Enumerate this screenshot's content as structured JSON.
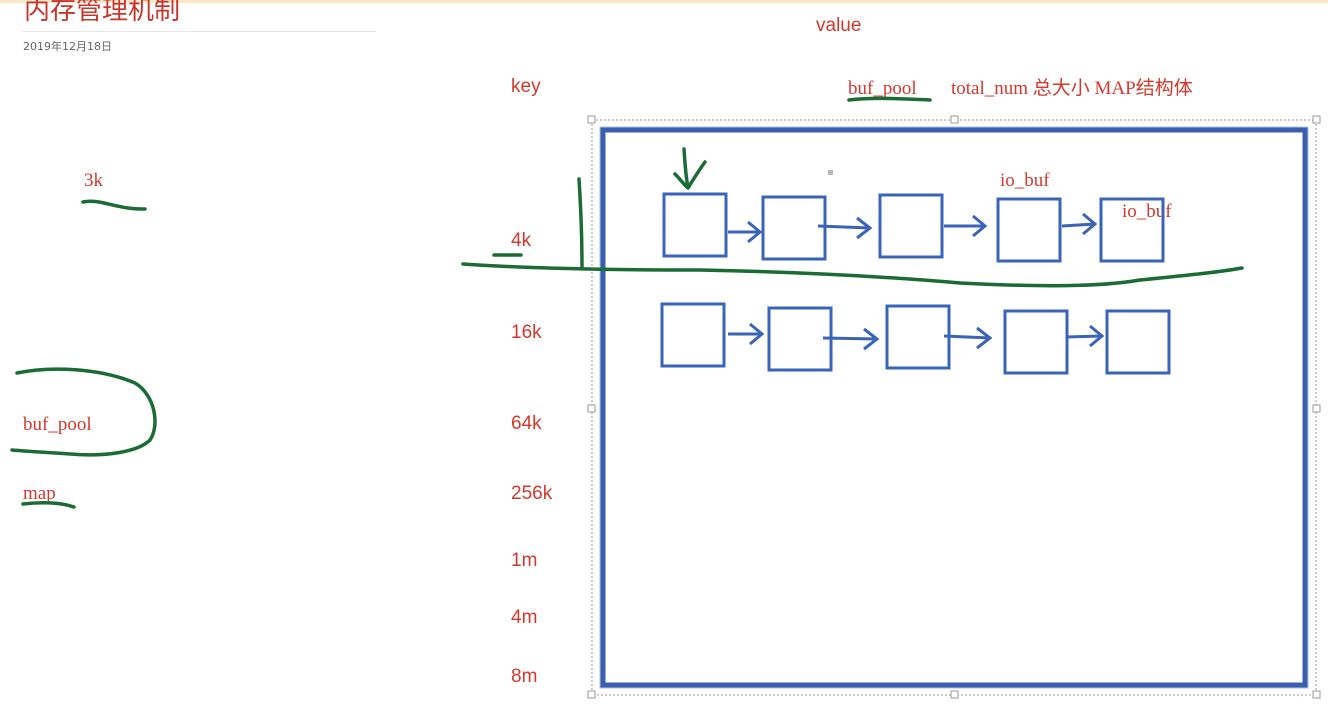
{
  "header": {
    "title": "内存管理机制",
    "date": "2019年12月18日"
  },
  "left_annotations": {
    "size_note": "3k",
    "pool_label": "buf_pool",
    "map_label": "map"
  },
  "diagram": {
    "value_label": "value",
    "key_label": "key",
    "buf_pool_label": "buf_pool",
    "value_desc": "total_num 总大小 MAP结构体",
    "keys": [
      "4k",
      "16k",
      "64k",
      "256k",
      "1m",
      "4m",
      "8m"
    ],
    "row1_nodes": 5,
    "row2_nodes": 5,
    "node_label_a": "io_buf",
    "node_label_b": "io_buf"
  },
  "colors": {
    "ink_red": "#d23a2e",
    "ink_green": "#1b6b34",
    "box_blue": "#3a64b8",
    "frame_blue": "#3a5fb0"
  }
}
